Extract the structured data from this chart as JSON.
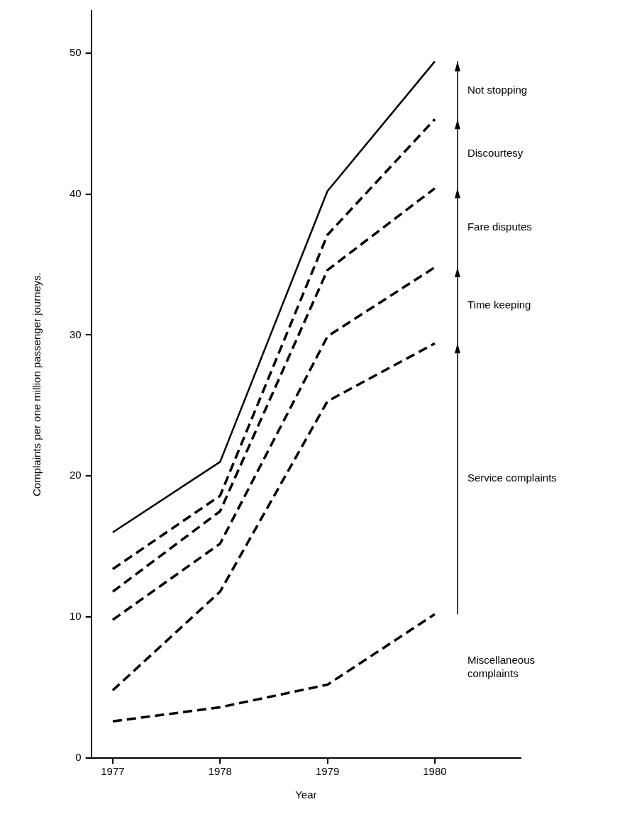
{
  "chart_data": {
    "type": "line",
    "xlabel": "Year",
    "ylabel": "Complaints per one million passenger journeys.",
    "x": [
      1977,
      1978,
      1979,
      1980
    ],
    "xlim": [
      1976.8,
      1980.8
    ],
    "xticks": [
      1977,
      1978,
      1979,
      1980
    ],
    "ylim": [
      0,
      53
    ],
    "yticks": [
      0,
      10,
      20,
      30,
      40,
      50
    ],
    "grid": false,
    "legend": false,
    "marker": "none",
    "series": [
      {
        "color": "#000000",
        "line_style": "solid",
        "values": [
          16,
          21,
          40.2,
          49.4
        ]
      },
      {
        "color": "#000000",
        "line_style": "dashed",
        "values": [
          13.4,
          18.6,
          37.1,
          45.3
        ]
      },
      {
        "color": "#000000",
        "line_style": "dashed",
        "values": [
          11.8,
          17.5,
          34.6,
          40.4
        ]
      },
      {
        "color": "#000000",
        "line_style": "dashed",
        "values": [
          9.8,
          15.2,
          29.9,
          34.8
        ]
      },
      {
        "color": "#000000",
        "line_style": "dashed",
        "values": [
          4.8,
          11.8,
          25.3,
          29.4
        ]
      },
      {
        "color": "#000000",
        "line_style": "dashed",
        "values": [
          2.6,
          3.6,
          5.2,
          10.2
        ]
      }
    ],
    "annotations": [
      "Not stopping",
      "Discourtesy",
      "Fare disputes",
      "Time keeping",
      "Service complaints",
      "Miscellaneous\ncomplaints"
    ]
  }
}
